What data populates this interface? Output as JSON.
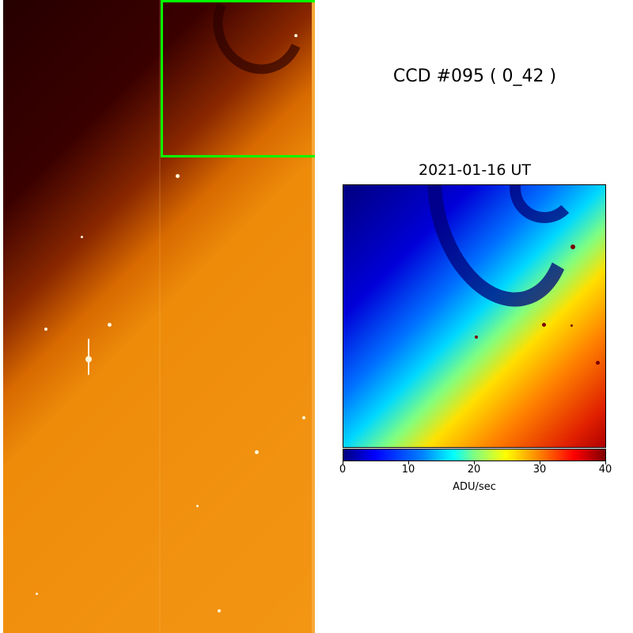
{
  "figure": {
    "title": "CCD #095 ( 0_42 )",
    "date": "2021-01-16 UT"
  },
  "colorbar": {
    "label": "ADU/sec",
    "range": [
      0,
      40
    ],
    "ticks": [
      "0",
      "10",
      "20",
      "30",
      "40"
    ],
    "colormap": "jet"
  },
  "colors": {
    "zoom_box": "#00ff00",
    "image_colormap_dark": "#260000",
    "image_colormap_bright": "#f39614"
  }
}
